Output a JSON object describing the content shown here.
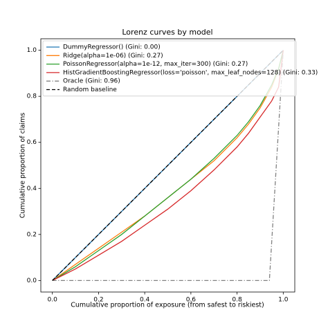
{
  "chart_data": {
    "type": "line",
    "title": "Lorenz curves by model",
    "xlabel": "Cumulative proportion of exposure (from safest to riskiest)",
    "ylabel": "Cumulative proportion of claims",
    "xlim": [
      -0.05,
      1.05
    ],
    "ylim": [
      -0.05,
      1.05
    ],
    "xticks": [
      {
        "value": 0,
        "label": "0.0"
      },
      0.2,
      0.4,
      0.6,
      0.8,
      {
        "value": 1,
        "label": "1.0"
      }
    ],
    "yticks": [
      {
        "value": 0,
        "label": "0.0"
      },
      0.2,
      0.4,
      0.6,
      0.8,
      {
        "value": 1,
        "label": "1.0"
      }
    ],
    "legend": "upper left",
    "series": [
      {
        "name": "DummyRegressor() (Gini: 0.00)",
        "color": "#1f77b4",
        "linestyle": "solid",
        "x": [
          0,
          1
        ],
        "values": [
          0,
          1
        ]
      },
      {
        "name": "Ridge(alpha=1e-06) (Gini: 0.27)",
        "color": "#ff7f0e",
        "linestyle": "solid",
        "x": [
          0,
          0.1,
          0.2,
          0.3,
          0.4,
          0.5,
          0.6,
          0.7,
          0.8,
          0.85,
          0.9,
          0.95,
          0.98,
          1
        ],
        "values": [
          0,
          0.07,
          0.14,
          0.21,
          0.28,
          0.36,
          0.44,
          0.52,
          0.62,
          0.68,
          0.75,
          0.84,
          0.92,
          1
        ]
      },
      {
        "name": "PoissonRegressor(alpha=1e-12, max_iter=300) (Gini: 0.27)",
        "color": "#2ca02c",
        "linestyle": "solid",
        "x": [
          0,
          0.1,
          0.2,
          0.3,
          0.4,
          0.5,
          0.6,
          0.7,
          0.8,
          0.85,
          0.9,
          0.95,
          0.98,
          1
        ],
        "values": [
          0,
          0.06,
          0.13,
          0.2,
          0.28,
          0.36,
          0.44,
          0.53,
          0.63,
          0.69,
          0.76,
          0.85,
          0.92,
          1
        ]
      },
      {
        "name": "HistGradientBoostingRegressor(loss='poisson', max_leaf_nodes=128) (Gini: 0.33)",
        "color": "#d62728",
        "linestyle": "solid",
        "x": [
          0,
          0.1,
          0.2,
          0.3,
          0.4,
          0.5,
          0.6,
          0.7,
          0.8,
          0.85,
          0.9,
          0.95,
          0.98,
          1
        ],
        "values": [
          0,
          0.05,
          0.11,
          0.17,
          0.24,
          0.31,
          0.39,
          0.48,
          0.58,
          0.64,
          0.71,
          0.78,
          0.84,
          1
        ]
      },
      {
        "name": "Oracle (Gini: 0.96)",
        "color": "#808080",
        "linestyle": "dashdot",
        "x": [
          0,
          0.94,
          1
        ],
        "values": [
          0,
          0,
          1
        ]
      },
      {
        "name": "Random baseline",
        "color": "#000000",
        "linestyle": "dashed",
        "x": [
          0,
          1
        ],
        "values": [
          0,
          1
        ]
      }
    ]
  }
}
